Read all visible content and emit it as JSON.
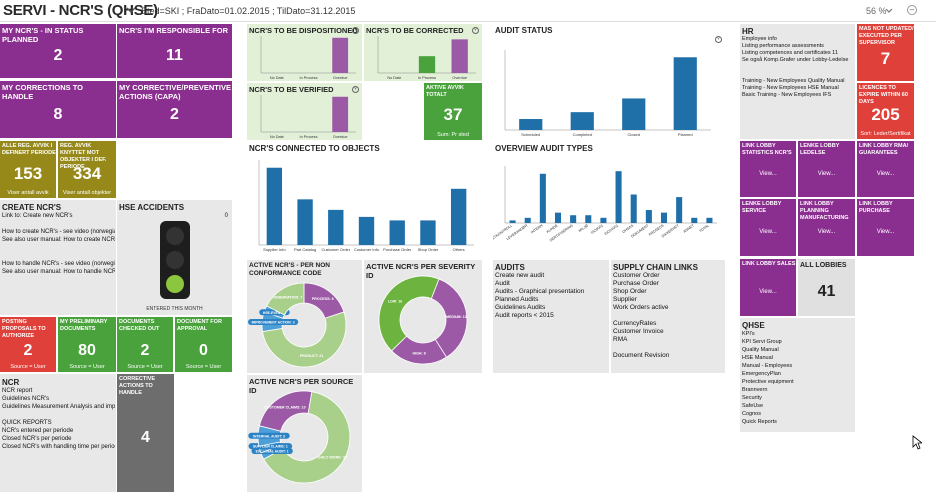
{
  "header": {
    "title": "SERVI - NCR'S (QHSE)",
    "filter": "Sted=SKI ; FraDato=01.02.2015 ; TilDato=31.12.2015",
    "zoom": "56 %"
  },
  "colors": {
    "purple": "#8a2e8f",
    "olive": "#96891a",
    "green": "#49a23c",
    "red": "#e0403a",
    "bar_blue": "#1f6fa8",
    "pie_lightgreen": "#a8d08a",
    "pie_purple": "#9c5aa6"
  },
  "tiles": {
    "my_ncr": {
      "title": "MY NCR'S - IN STATUS PLANNED",
      "value": "2"
    },
    "responsible": {
      "title": "NCR'S I'M RESPONSIBLE FOR",
      "value": "11"
    },
    "corrections": {
      "title": "MY CORRECTIONS TO HANDLE",
      "value": "8"
    },
    "capa": {
      "title": "MY CORRECTIVE/PREVENTIVE ACTIONS (CAPA)",
      "value": "2"
    },
    "alle_reg": {
      "title": "ALLE REG. AVVIK I DEFINERT PERIODE",
      "value": "153",
      "foot": "Viser antall avvik"
    },
    "reg_avvik": {
      "title": "REG. AVVIK KNYTTET MOT OBJEKTER I DEF. PERIODE",
      "value": "334",
      "foot": "Viser antall objekter"
    },
    "aktive_avvik": {
      "title": "AKTIVE AVVIK TOTALT",
      "value": "37",
      "foot": "Sum: Pr sted"
    },
    "posting": {
      "title": "POSTING PROPOSALS TO AUTHORIZE",
      "value": "2",
      "foot": "Source = User"
    },
    "preliminary": {
      "title": "MY PRELIMINARY DOCUMENTS",
      "value": "80",
      "foot": "Source = User"
    },
    "checked_out": {
      "title": "DOCUMENTS CHECKED OUT",
      "value": "2",
      "foot": "Source = User"
    },
    "approval": {
      "title": "DOCUMENT FOR APPROVAL",
      "value": "0",
      "foot": "Source = User"
    },
    "corrective_handle": {
      "title": "CORRECTIVE ACTIONS TO HANDLE",
      "value": "4"
    },
    "not_updated": {
      "title": "MAS NOT UPDATED/ EXECUTED PER SUPERVISOR",
      "value": "7"
    },
    "licences": {
      "title": "LICENCES TO EXPIRE WITHIN 60 DAYS",
      "value": "205",
      "foot": "Sort: Leder/Sertifikat"
    },
    "all_lobbies": {
      "title": "ALL LOBBIES",
      "value": "41"
    }
  },
  "lobby_links": {
    "stats": {
      "title": "LINK LOBBY STATISTICS NCR'S",
      "view": "View..."
    },
    "ledelse": {
      "title": "LENKE LOBBY LEDELSE",
      "view": "View..."
    },
    "rma": {
      "title": "LINK LOBBY RMA/ GUARANTEES",
      "view": "View..."
    },
    "service": {
      "title": "LENKE LOBBY SERVICE",
      "view": "View..."
    },
    "planning": {
      "title": "LINK LOBBY PLANNING MANUFACTURING",
      "view": "View..."
    },
    "purchase": {
      "title": "LINK LOBBY PURCHASE",
      "view": "View..."
    },
    "sales": {
      "title": "LINK LOBBY SALES",
      "view": "View..."
    }
  },
  "create_ncr": {
    "title": "CREATE NCR'S",
    "count": "0",
    "lines": [
      "Link to:  Create new NCR's",
      "",
      "How to create NCR's - see video (norwegian",
      "See also user manual: How to create NCR's",
      "",
      "",
      "How to handle NCR's - see video (norwegian",
      "See also user manual: How to handle NCR's"
    ]
  },
  "hse": {
    "title": "HSE ACCIDENTS",
    "count": "0",
    "foot": "ENTERED THIS MONTH"
  },
  "ncr_links": {
    "title": "NCR",
    "lines": [
      "NCR report",
      "Guidelines NCR's",
      "Guidelines Measurement Analysis and imp",
      "",
      "QUICK REPORTS",
      "NCR's entered per periode",
      "Closed NCR's per periode",
      "Closed NCR's with handling time per period"
    ]
  },
  "hr": {
    "title": "HR",
    "lines": [
      "Employee info",
      "Listing performance assessments",
      "Listing competences and certificates   11",
      "Se også Komp.Grafer under Lobby-Ledelse",
      "",
      "",
      "Training - New Employees Quality Manual",
      "Training - New Employees HSE Manual",
      "Basic Training - New Employees IFS"
    ]
  },
  "qhse": {
    "title": "QHSE",
    "lines": [
      "KPI's",
      "KPI Servi Group",
      "Quality Manual",
      "HSE Manual",
      "Manual - Employees",
      "EmergencyPlan",
      "Protective equipment",
      "Brannvern",
      "Security",
      "SafeUse",
      "Cognos",
      "Quick Reports"
    ]
  },
  "audits": {
    "title": "AUDITS",
    "lines": [
      "Create new audit",
      "Audit",
      "Audits - Graphical presentation",
      "Planned Audits",
      "Guidelines Audits",
      "Audit reports < 2015"
    ]
  },
  "supply": {
    "title": "SUPPLY CHAIN LINKS",
    "lines": [
      "Customer Order",
      "Purchase Order",
      "Shop Order",
      "Supplier",
      "Work Orders active",
      "",
      "CurrencyRates",
      "Customer Invoice",
      "RMA",
      "",
      "Document Revision"
    ]
  },
  "chart_data": [
    {
      "id": "dispositioned",
      "type": "bar",
      "title": "NCR'S TO BE DISPOSITIONED",
      "categories": [
        "No Date",
        "In Process",
        "Overdue"
      ],
      "values": [
        0,
        0,
        1
      ],
      "colors": [
        "#9c5aa6",
        "#9c5aa6",
        "#9c5aa6"
      ]
    },
    {
      "id": "corrected",
      "type": "bar",
      "title": "NCR'S TO BE CORRECTED",
      "categories": [
        "No Date",
        "In Process",
        "Overdue"
      ],
      "values": [
        0,
        1,
        2
      ],
      "colors": [
        "#49a23c",
        "#49a23c",
        "#9c5aa6"
      ]
    },
    {
      "id": "verified",
      "type": "bar",
      "title": "NCR'S TO BE VERIFIED",
      "categories": [
        "No Date",
        "In Process",
        "Overdue"
      ],
      "values": [
        0,
        0,
        1
      ],
      "colors": [
        "#9c5aa6",
        "#9c5aa6",
        "#9c5aa6"
      ]
    },
    {
      "id": "audit_status",
      "type": "bar",
      "title": "AUDIT STATUS",
      "categories": [
        "Scheduled",
        "Completed",
        "Closed",
        "Planned"
      ],
      "values": [
        8,
        13,
        23,
        53
      ]
    },
    {
      "id": "connected",
      "type": "bar",
      "title": "NCR'S CONNECTED TO OBJECTS",
      "categories": [
        "Supplier Info",
        "Part Catalog",
        "Customer Order",
        "Customer Info",
        "Purchase Order",
        "Shop Order",
        "Others"
      ],
      "values": [
        22,
        13,
        10,
        8,
        7,
        7,
        16
      ]
    },
    {
      "id": "overview_audit",
      "type": "bar",
      "title": "OVERVIEW AUDIT TYPES",
      "categories": [
        "PRODUKTKONTROLL",
        "LEVERANDØR",
        "INTERN",
        "KUNDE",
        "SERTIFISERING",
        "MILJØ",
        "ISO9001",
        "ISO14001",
        "OHSAS",
        "DOKUMENT",
        "PROSESS",
        "SIKKERHET",
        "ANNET",
        "TOTAL"
      ],
      "values": [
        1,
        2,
        19,
        4,
        3,
        3,
        2,
        20,
        11,
        5,
        4,
        10,
        2,
        2
      ]
    },
    {
      "id": "nonconf",
      "type": "pie",
      "title": "ACTIVE NCR'S - PER NON CONFORMANCE CODE",
      "slices": [
        {
          "label": "PROCESS: 8",
          "value": 8,
          "color": "#9c5aa6"
        },
        {
          "label": "PRODUCT: 21",
          "value": 21,
          "color": "#a8d08a"
        },
        {
          "label": "IMPROVEMENT ACTION: 3",
          "value": 3,
          "color": "#4e9ed8"
        },
        {
          "label": "HSE-EVENT: 1",
          "value": 1,
          "color": "#4e9ed8"
        },
        {
          "label": "OBSERVATION: 7",
          "value": 7,
          "color": "#a8d08a"
        }
      ]
    },
    {
      "id": "severity",
      "type": "pie",
      "title": "ACTIVE NCR'S PER SEVERITY ID",
      "slices": [
        {
          "label": "MEDIUM: 13",
          "value": 13,
          "color": "#9c5aa6"
        },
        {
          "label": "HIGH: 8",
          "value": 8,
          "color": "#9c5aa6"
        },
        {
          "label": "LOW: 16",
          "value": 16,
          "color": "#6cb33f"
        }
      ]
    },
    {
      "id": "source",
      "type": "pie",
      "title": "ACTIVE NCR'S PER SOURCE ID",
      "slices": [
        {
          "label": "DAILY WORK: 27",
          "value": 27,
          "color": "#a8d08a"
        },
        {
          "label": "EXTERNAL AUDIT: 1",
          "value": 1,
          "color": "#4e9ed8"
        },
        {
          "label": "SUPPLIER CLAIMS: 1",
          "value": 1,
          "color": "#4e9ed8"
        },
        {
          "label": "INTERNAL AUDIT: 3",
          "value": 3,
          "color": "#4e9ed8"
        },
        {
          "label": "CUSTOMER CLAIMS: 10",
          "value": 10,
          "color": "#9c5aa6"
        }
      ]
    }
  ]
}
